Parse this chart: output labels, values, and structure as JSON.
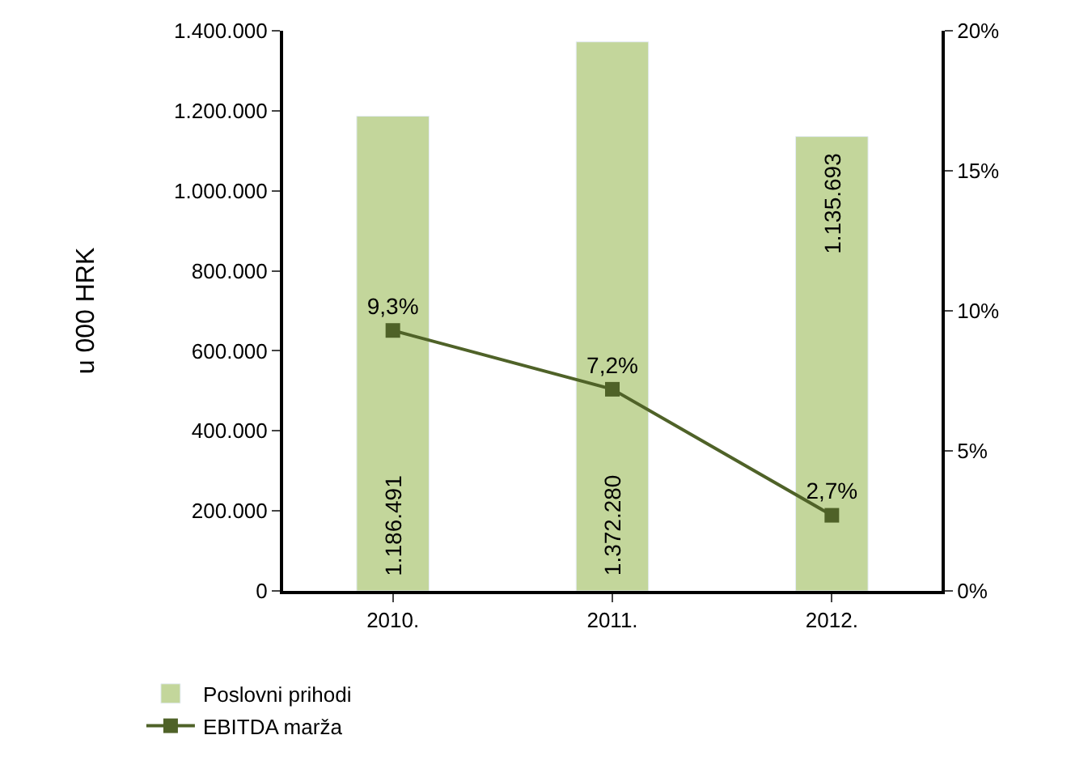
{
  "chart_data": {
    "type": "bar",
    "ylabel": "u 000 HRK",
    "categories": [
      "2010.",
      "2011.",
      "2012."
    ],
    "series": [
      {
        "name": "Poslovni prihodi",
        "color": "#c3d69b",
        "values": [
          1186491,
          1372280,
          1135693
        ],
        "value_labels": [
          "1.186.491",
          "1.372.280",
          "1.135.693"
        ]
      },
      {
        "name": "EBITDA marža",
        "type": "line",
        "axis": "y2",
        "color": "#4f6228",
        "marker": "square",
        "values": [
          9.3,
          7.2,
          2.7
        ],
        "value_labels": [
          "9,3%",
          "7,2%",
          "2,7%"
        ]
      }
    ],
    "ylim": [
      0,
      1400000
    ],
    "yticks": [
      {
        "value": 0,
        "label": "0"
      },
      {
        "value": 200000,
        "label": "200.000"
      },
      {
        "value": 400000,
        "label": "400.000"
      },
      {
        "value": 600000,
        "label": "600.000"
      },
      {
        "value": 800000,
        "label": "800.000"
      },
      {
        "value": 1000000,
        "label": "1.000.000"
      },
      {
        "value": 1200000,
        "label": "1.200.000"
      },
      {
        "value": 1400000,
        "label": "1.400.000"
      }
    ],
    "y2lim": [
      0,
      20
    ],
    "y2ticks": [
      {
        "value": 0,
        "label": "0%"
      },
      {
        "value": 5,
        "label": "5%"
      },
      {
        "value": 10,
        "label": "10%"
      },
      {
        "value": 15,
        "label": "15%"
      },
      {
        "value": 20,
        "label": "20%"
      }
    ],
    "legend": "bottom left"
  }
}
